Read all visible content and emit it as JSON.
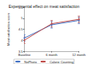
{
  "chart_data": {
    "type": "line",
    "title": "Experimental effect on meat satisfaction",
    "y_label": "Meat satisfaction score",
    "categories": [
      "Baseline",
      "6 month",
      "12 month"
    ],
    "series": [
      {
        "name": "NoPhoto",
        "color": "#4472c4",
        "marker": "circle",
        "values": [
          4.1,
          4.7,
          4.9
        ],
        "errors": [
          0.15,
          0.15,
          0.15
        ]
      },
      {
        "name": "Calorie Counting",
        "color": "#c0504d",
        "marker": "circle",
        "values": [
          4.0,
          4.75,
          4.95
        ],
        "errors": [
          0.15,
          0.15,
          0.15
        ]
      }
    ],
    "ylim": [
      3.5,
      5.5
    ],
    "yticks": [
      3.5,
      4,
      4.5,
      5,
      5.5
    ],
    "grid": false,
    "legend": "bottom"
  }
}
